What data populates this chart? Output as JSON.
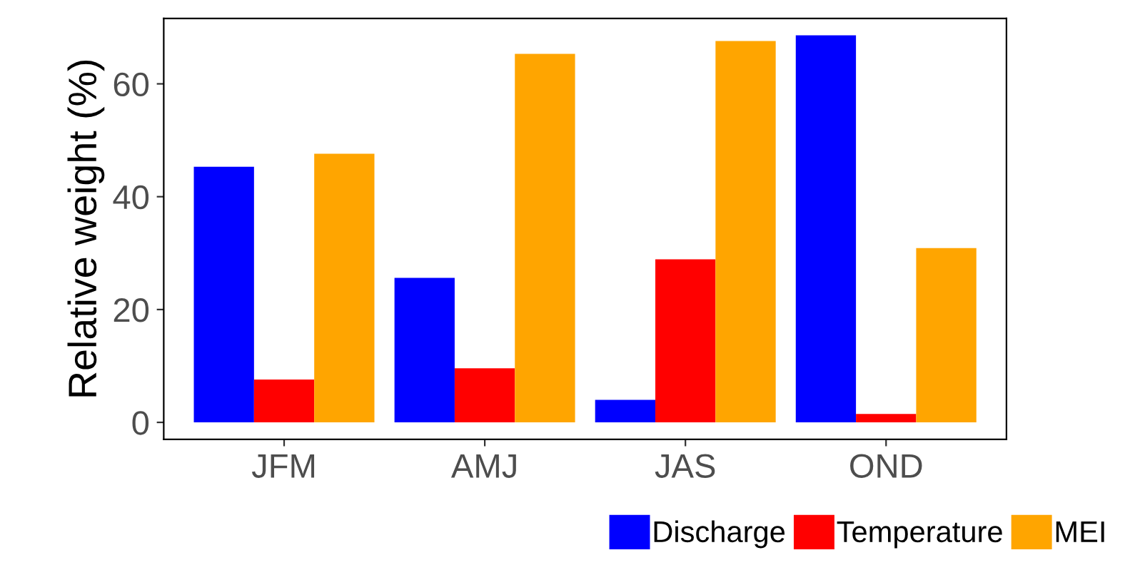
{
  "chart_data": {
    "type": "bar",
    "ylabel": "Relative weight (%)",
    "categories": [
      "JFM",
      "AMJ",
      "JAS",
      "OND"
    ],
    "series": [
      {
        "name": "Discharge",
        "color": "#0000ff",
        "values": [
          45.3,
          25.6,
          4.0,
          68.6
        ]
      },
      {
        "name": "Temperature",
        "color": "#ff0000",
        "values": [
          7.6,
          9.6,
          28.9,
          1.5
        ]
      },
      {
        "name": "MEI",
        "color": "#ffa500",
        "values": [
          47.6,
          65.3,
          67.6,
          30.9
        ]
      }
    ],
    "ylim": [
      -3,
      71.6
    ],
    "yticks": [
      0,
      20,
      40,
      60
    ],
    "grid": false,
    "legend": "bottom right"
  }
}
